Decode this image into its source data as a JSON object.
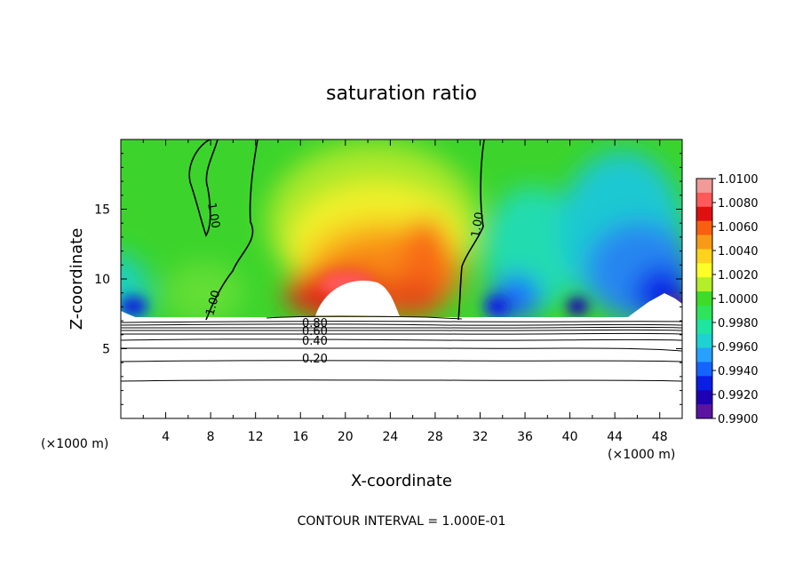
{
  "chart_data": {
    "type": "heatmap",
    "title": "saturation ratio",
    "xlabel": "X-coordinate",
    "ylabel": "Z-coordinate",
    "x_unit_left": "(×1000 m)",
    "x_unit_right": "(×1000 m)",
    "xlim": [
      0,
      50
    ],
    "ylim": [
      0,
      20
    ],
    "x_ticks": [
      "4",
      "8",
      "12",
      "16",
      "20",
      "24",
      "28",
      "32",
      "36",
      "40",
      "44",
      "48"
    ],
    "y_ticks": [
      "5",
      "10",
      "15"
    ],
    "footer": "CONTOUR INTERVAL = 1.000E-01",
    "colorbar": {
      "labels": [
        "1.0100",
        "1.0080",
        "1.0060",
        "1.0040",
        "1.0020",
        "1.0000",
        "0.9980",
        "0.9960",
        "0.9940",
        "0.9920",
        "0.9900"
      ],
      "min": 0.99,
      "max": 1.01,
      "colors": [
        "#f09a9a",
        "#ff5a5a",
        "#e01010",
        "#f86010",
        "#f89a18",
        "#ffd21e",
        "#ffff28",
        "#b4ee28",
        "#3cdc28",
        "#2ee45a",
        "#1ee6a0",
        "#1ed2d2",
        "#28a0ff",
        "#1464ff",
        "#0a1ee6",
        "#1e00b4",
        "#5a14a0"
      ]
    },
    "contour_labels_upper": [
      "1.00",
      "1.00",
      "1.00"
    ],
    "contour_labels_lower": [
      "0.80",
      "0.60",
      "0.40",
      "0.20"
    ]
  }
}
